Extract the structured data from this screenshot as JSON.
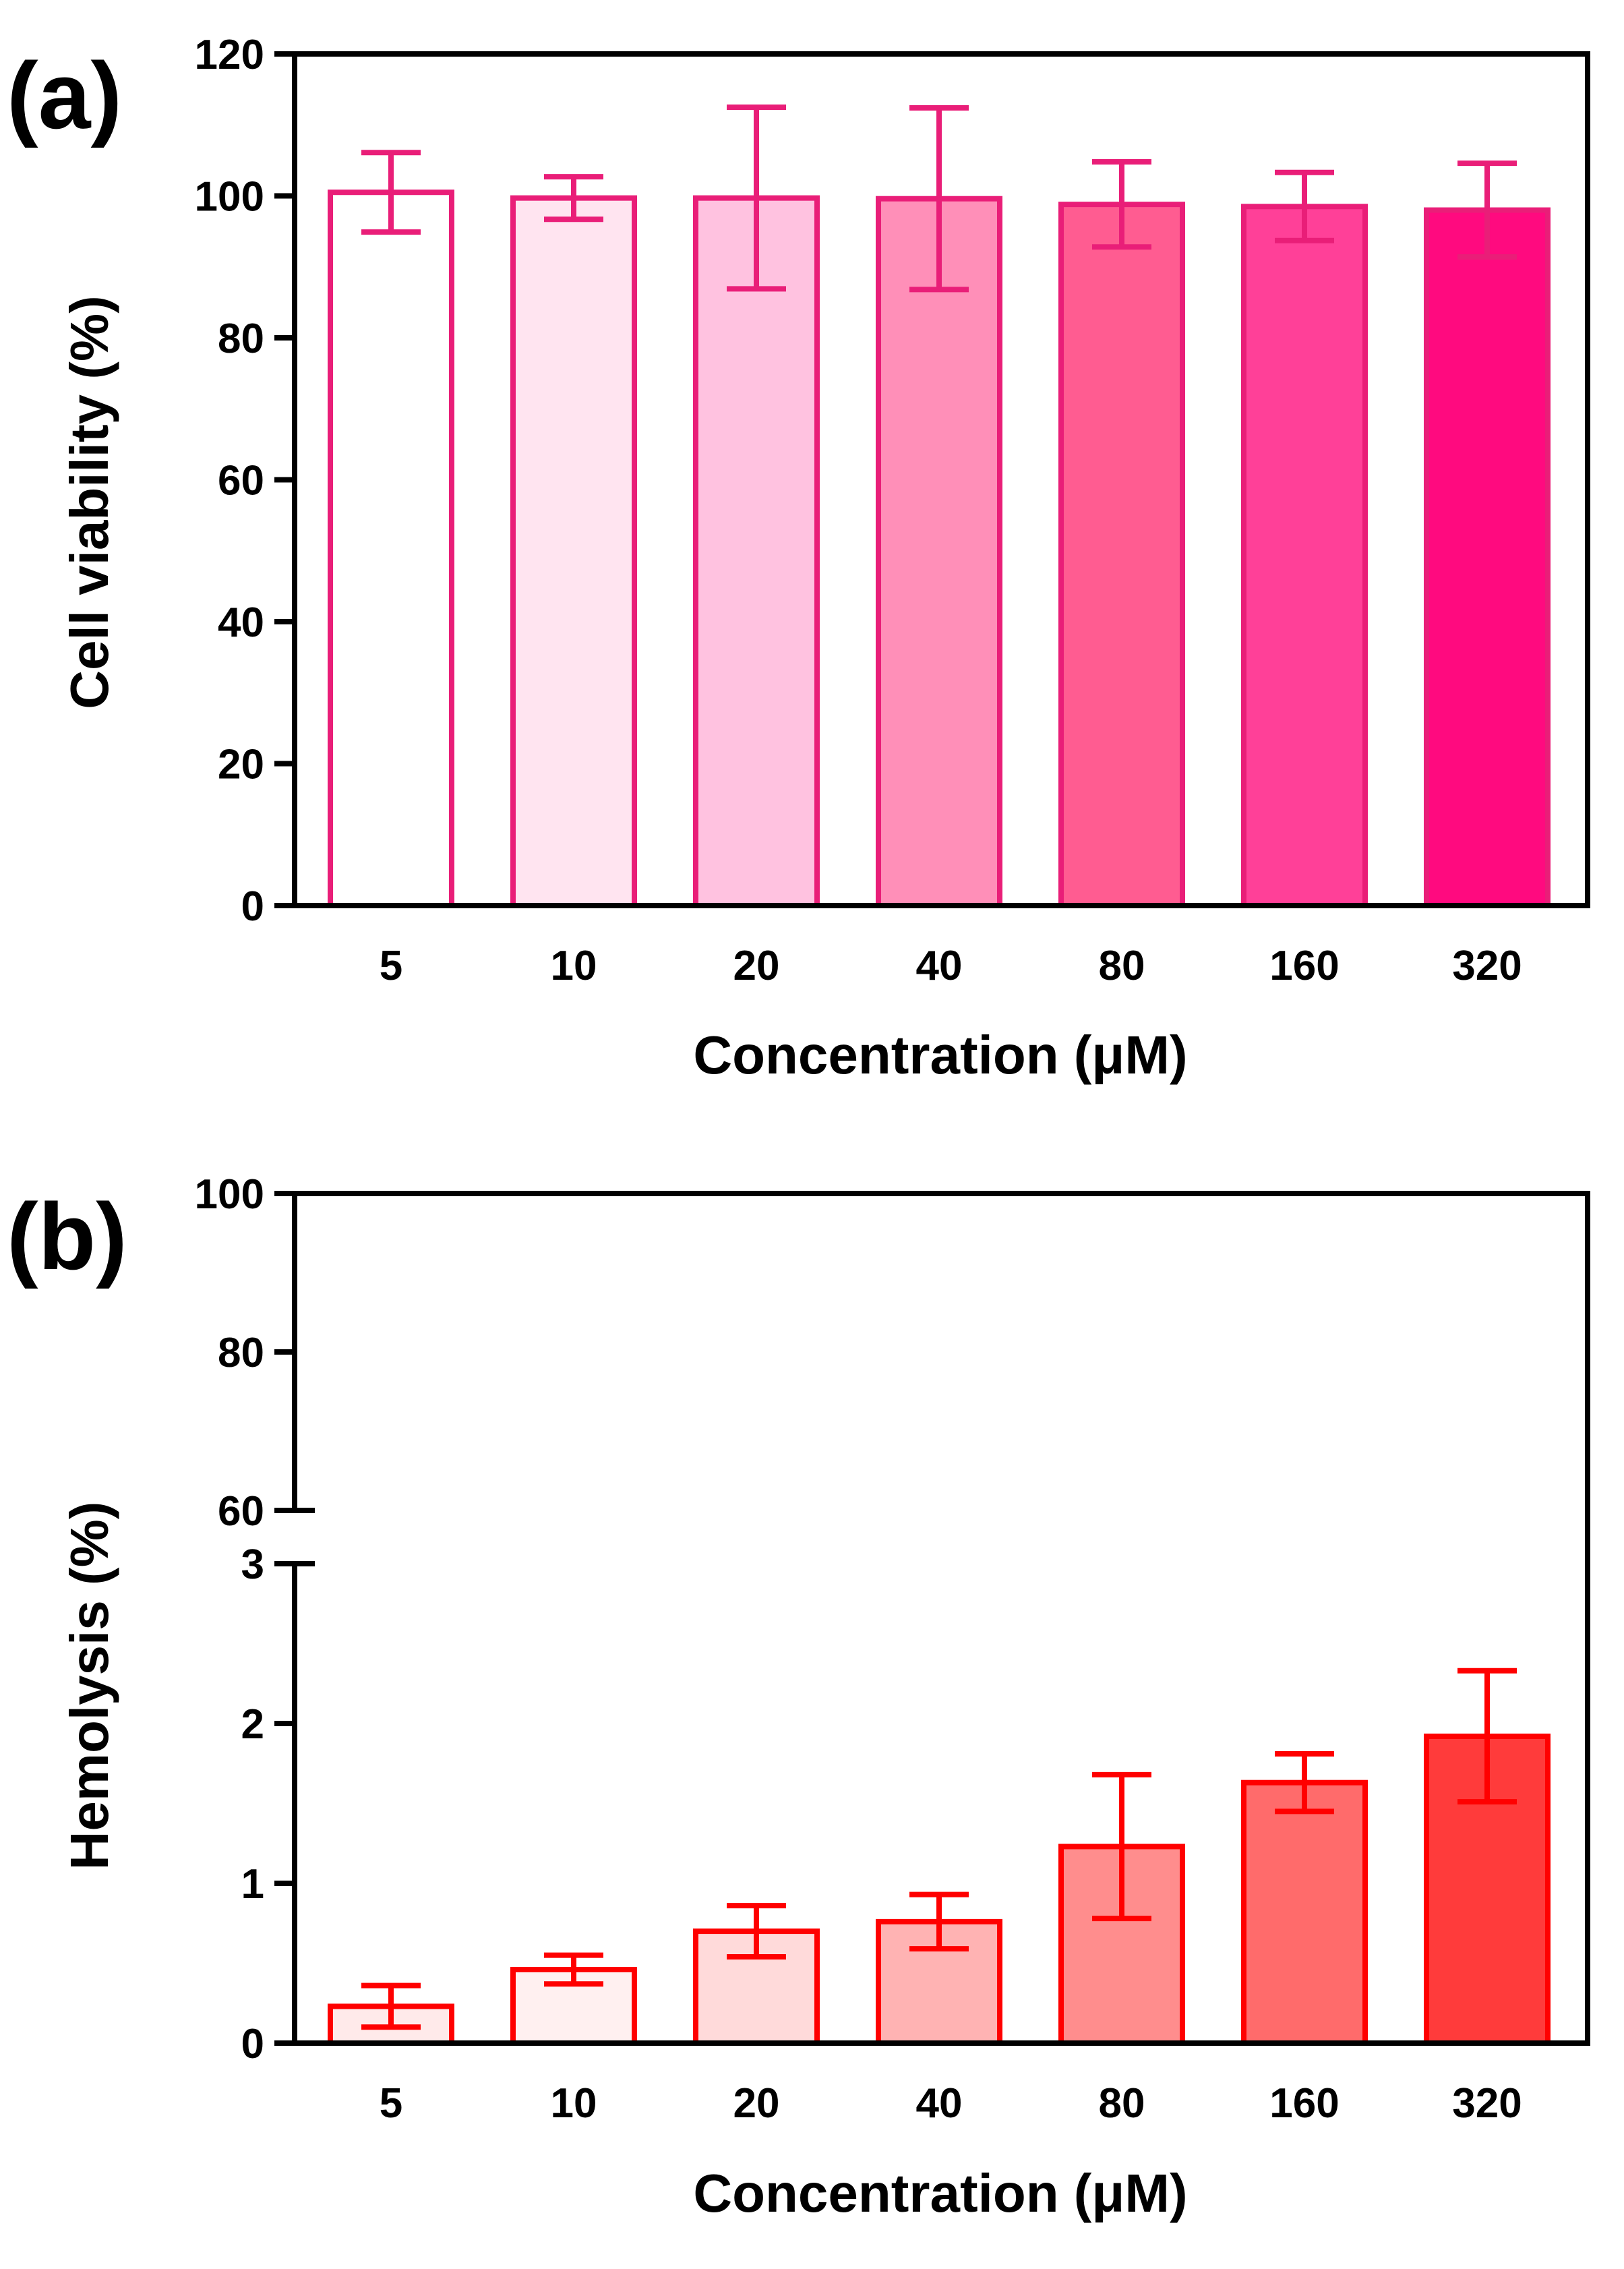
{
  "chart_data": [
    {
      "panel_label": "(a)",
      "type": "bar",
      "xlabel": "Concentration (μM)",
      "ylabel": "Cell viability (%)",
      "ylim": [
        0,
        120
      ],
      "yticks": [
        "0",
        "20",
        "40",
        "60",
        "80",
        "100",
        "120"
      ],
      "categories": [
        "5",
        "10",
        "20",
        "40",
        "80",
        "160",
        "320"
      ],
      "values": [
        100.5,
        99.7,
        99.7,
        99.6,
        98.8,
        98.5,
        98.0
      ],
      "errors": [
        5.6,
        3.0,
        12.8,
        12.8,
        6.0,
        4.8,
        6.6
      ],
      "stroke_color": "#e91e78",
      "fill_colors": [
        "#ffffff",
        "#ffe4f0",
        "#ffc2e0",
        "#ff8fb8",
        "#ff5c91",
        "#ff4098",
        "#ff0a7f"
      ]
    },
    {
      "panel_label": "(b)",
      "type": "bar",
      "xlabel": "Concentration (μM)",
      "ylabel": "Hemolysis (%)",
      "axis_break": true,
      "lower_ylim": [
        0,
        3
      ],
      "upper_ylim": [
        60,
        100
      ],
      "lower_yticks": [
        "0",
        "1",
        "2",
        "3"
      ],
      "upper_yticks": [
        "60",
        "80",
        "100"
      ],
      "categories": [
        "5",
        "10",
        "20",
        "40",
        "80",
        "160",
        "320"
      ],
      "values": [
        0.23,
        0.46,
        0.7,
        0.76,
        1.23,
        1.63,
        1.92
      ],
      "errors": [
        0.13,
        0.09,
        0.16,
        0.17,
        0.45,
        0.18,
        0.41
      ],
      "stroke_color": "#ff0000",
      "fill_colors": [
        "#ffeaea",
        "#fff0f0",
        "#ffdada",
        "#ffb3b3",
        "#ff8d8d",
        "#ff6b6b",
        "#ff3b3b"
      ]
    }
  ]
}
